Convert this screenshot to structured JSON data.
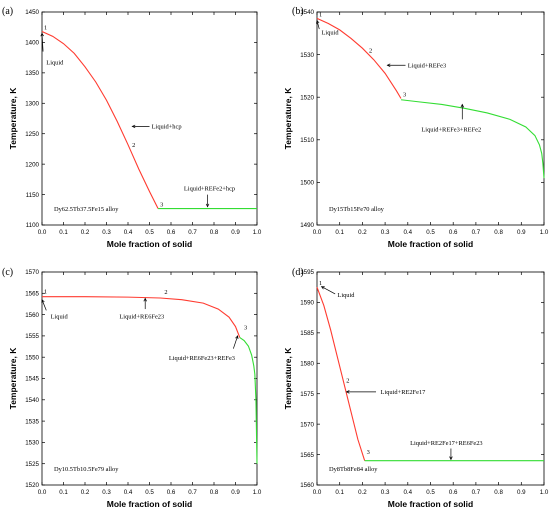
{
  "figure": {
    "panels": [
      "a",
      "b",
      "c",
      "d"
    ]
  },
  "chart_data": [
    {
      "panel_label": "(a)",
      "type": "line",
      "xlabel": "Mole fraction of solid",
      "ylabel": "Temperature, K",
      "xlim": [
        0.0,
        1.0
      ],
      "ylim": [
        1100,
        1450
      ],
      "xticks": [
        "0.0",
        "0.1",
        "0.2",
        "0.3",
        "0.4",
        "0.5",
        "0.6",
        "0.7",
        "0.8",
        "0.9",
        "1.0"
      ],
      "yticks": [
        "1100",
        "1150",
        "1200",
        "1250",
        "1300",
        "1350",
        "1400",
        "1450"
      ],
      "ytick_values": [
        1100,
        1150,
        1200,
        1250,
        1300,
        1350,
        1400,
        1450
      ],
      "alloy": "Dy62.5Tb37.5Fe15 alloy",
      "series": [
        {
          "color": "#ff3b30",
          "x": [
            0.0,
            0.05,
            0.1,
            0.15,
            0.2,
            0.25,
            0.3,
            0.35,
            0.4,
            0.45,
            0.5,
            0.54
          ],
          "y": [
            1418,
            1410,
            1398,
            1382,
            1360,
            1335,
            1305,
            1270,
            1232,
            1192,
            1155,
            1127
          ]
        },
        {
          "color": "#33dd33",
          "x": [
            0.54,
            0.6,
            0.7,
            0.8,
            0.9,
            1.0
          ],
          "y": [
            1127,
            1127,
            1127,
            1127,
            1127,
            1127
          ]
        }
      ],
      "points": [
        {
          "label": "1",
          "x": 0.0,
          "y": 1418
        },
        {
          "label": "2",
          "x": 0.41,
          "y": 1225
        },
        {
          "label": "3",
          "x": 0.54,
          "y": 1127
        }
      ],
      "annotations": [
        {
          "text": "Liquid",
          "x": 0.02,
          "y": 1367,
          "ax": 0.0,
          "ay": 1415,
          "tx": 0.005,
          "ty": 1385
        },
        {
          "text": "Liquid+hcp",
          "x": 0.51,
          "y": 1262,
          "ax": 0.42,
          "ay": 1262,
          "tx": 0.5,
          "ty": 1262
        },
        {
          "text": "Liquid+REFe2+hcp",
          "x": 0.66,
          "y": 1160,
          "ax": 0.77,
          "ay": 1130,
          "tx": 0.77,
          "ty": 1150
        }
      ]
    },
    {
      "panel_label": "(b)",
      "type": "line",
      "xlabel": "Mole fraction of solid",
      "ylabel": "Temperature, K",
      "xlim": [
        0.0,
        1.0
      ],
      "ylim": [
        1490,
        1540
      ],
      "xticks": [
        "0.0",
        "0.1",
        "0.2",
        "0.3",
        "0.4",
        "0.5",
        "0.6",
        "0.7",
        "0.8",
        "0.9",
        "1.0"
      ],
      "yticks": [
        "1490",
        "1500",
        "1510",
        "1520",
        "1530",
        "1540"
      ],
      "ytick_values": [
        1490,
        1500,
        1510,
        1520,
        1530,
        1540
      ],
      "alloy": "Dy15Tb15Fe70 alloy",
      "series": [
        {
          "color": "#ff3b30",
          "x": [
            0.0,
            0.05,
            0.1,
            0.15,
            0.2,
            0.25,
            0.3,
            0.35,
            0.37
          ],
          "y": [
            1538.5,
            1537.3,
            1535.8,
            1533.8,
            1531.5,
            1528.8,
            1525.6,
            1521.5,
            1519.7
          ]
        },
        {
          "color": "#33dd33",
          "x": [
            0.37,
            0.45,
            0.55,
            0.65,
            0.75,
            0.85,
            0.92,
            0.96,
            0.98,
            0.99,
            0.995,
            1.0
          ],
          "y": [
            1519.4,
            1518.9,
            1518.3,
            1517.4,
            1516.3,
            1514.8,
            1513.0,
            1511.0,
            1508.8,
            1506.8,
            1504.5,
            1501.0
          ]
        }
      ],
      "points": [
        {
          "label": "1",
          "x": 0.0,
          "y": 1538.5
        },
        {
          "label": "2",
          "x": 0.22,
          "y": 1530
        },
        {
          "label": "3",
          "x": 0.37,
          "y": 1519.7
        }
      ],
      "annotations": [
        {
          "text": "Liquid",
          "x": 0.02,
          "y": 1535.2,
          "ax": 0.0,
          "ay": 1538,
          "tx": 0.01,
          "ty": 1536
        },
        {
          "text": "Liquid+REFe3",
          "x": 0.4,
          "y": 1527.5,
          "ax": 0.31,
          "ay": 1527.5,
          "tx": 0.39,
          "ty": 1527.5
        },
        {
          "text": "Liquid+REFe3+REFe2",
          "x": 0.46,
          "y": 1512.4,
          "ax": 0.64,
          "ay": 1518.3,
          "tx": 0.64,
          "ty": 1514.8
        }
      ]
    },
    {
      "panel_label": "(c)",
      "type": "line",
      "xlabel": "Mole fraction of solid",
      "ylabel": "Temperature, K",
      "xlim": [
        0.0,
        1.0
      ],
      "ylim": [
        1520,
        1570
      ],
      "xticks": [
        "0.0",
        "0.1",
        "0.2",
        "0.3",
        "0.4",
        "0.5",
        "0.6",
        "0.7",
        "0.8",
        "0.9",
        "1.0"
      ],
      "yticks": [
        "1520",
        "1525",
        "1530",
        "1535",
        "1540",
        "1545",
        "1550",
        "1555",
        "1560",
        "1565",
        "1570"
      ],
      "ytick_values": [
        1520,
        1525,
        1530,
        1535,
        1540,
        1545,
        1550,
        1555,
        1560,
        1565,
        1570
      ],
      "alloy": "Dy10.5Tb10.5Fe79 alloy",
      "series": [
        {
          "color": "#ff3b30",
          "x": [
            0.0,
            0.2,
            0.4,
            0.55,
            0.65,
            0.75,
            0.82,
            0.87,
            0.9,
            0.92
          ],
          "y": [
            1564.2,
            1564.2,
            1564.1,
            1563.9,
            1563.5,
            1562.7,
            1561.3,
            1559.4,
            1557.2,
            1554.6
          ]
        },
        {
          "color": "#33dd33",
          "x": [
            0.92,
            0.94,
            0.96,
            0.975,
            0.985,
            0.99,
            0.995,
            1.0
          ],
          "y": [
            1554.6,
            1553.9,
            1552.6,
            1550.5,
            1548.0,
            1546.0,
            1540.0,
            1525.0
          ]
        }
      ],
      "points": [
        {
          "label": "1",
          "x": 0.0,
          "y": 1564.5
        },
        {
          "label": "2",
          "x": 0.56,
          "y": 1564.4
        },
        {
          "label": "3",
          "x": 0.93,
          "y": 1556.0
        }
      ],
      "annotations": [
        {
          "text": "Liquid",
          "x": 0.04,
          "y": 1559.5,
          "ax": 0.0,
          "ay": 1563.5,
          "tx": 0.02,
          "ty": 1561
        },
        {
          "text": "Liquid+RE6Fe23",
          "x": 0.36,
          "y": 1559.6,
          "ax": 0.48,
          "ay": 1563.8,
          "tx": 0.48,
          "ty": 1561.3
        },
        {
          "text": "Liquid+RE6Fe23+REFe3",
          "x": 0.59,
          "y": 1549.8,
          "ax": 0.91,
          "ay": 1555.0,
          "tx": 0.89,
          "ty": 1552.0
        }
      ]
    },
    {
      "panel_label": "(d)",
      "type": "line",
      "xlabel": "Mole fraction of solid",
      "ylabel": "Temperature, K",
      "xlim": [
        0.0,
        1.0
      ],
      "ylim": [
        1560,
        1595
      ],
      "xticks": [
        "0.0",
        "0.1",
        "0.2",
        "0.3",
        "0.4",
        "0.5",
        "0.6",
        "0.7",
        "0.8",
        "0.9",
        "1.0"
      ],
      "yticks": [
        "1560",
        "1565",
        "1570",
        "1575",
        "1580",
        "1585",
        "1590",
        "1595"
      ],
      "ytick_values": [
        1560,
        1565,
        1570,
        1575,
        1580,
        1585,
        1590,
        1595
      ],
      "alloy": "Dy8Tb8Fe84 alloy",
      "series": [
        {
          "color": "#ff3b30",
          "x": [
            0.0,
            0.03,
            0.06,
            0.09,
            0.12,
            0.15,
            0.18,
            0.21
          ],
          "y": [
            1592.5,
            1589.5,
            1585.5,
            1581.0,
            1576.5,
            1572.0,
            1567.5,
            1564.0
          ]
        },
        {
          "color": "#33dd33",
          "x": [
            0.21,
            0.4,
            0.6,
            0.8,
            1.0
          ],
          "y": [
            1564.0,
            1564.0,
            1564.0,
            1564.0,
            1564.0
          ]
        }
      ],
      "points": [
        {
          "label": "1",
          "x": 0.0,
          "y": 1592.5
        },
        {
          "label": "2",
          "x": 0.12,
          "y": 1576.5
        },
        {
          "label": "3",
          "x": 0.21,
          "y": 1564.8
        }
      ],
      "annotations": [
        {
          "text": "Liquid",
          "x": 0.09,
          "y": 1591.2,
          "ax": 0.02,
          "ay": 1592.6,
          "tx": 0.08,
          "ty": 1591.4
        },
        {
          "text": "Liquid+RE2Fe17",
          "x": 0.28,
          "y": 1575.3,
          "ax": 0.13,
          "ay": 1575.3,
          "tx": 0.26,
          "ty": 1575.3
        },
        {
          "text": "Liquid+RE2Fe17+RE6Fe23",
          "x": 0.41,
          "y": 1566.9,
          "ax": 0.59,
          "ay": 1564.2,
          "tx": 0.59,
          "ty": 1566.0
        }
      ]
    }
  ]
}
